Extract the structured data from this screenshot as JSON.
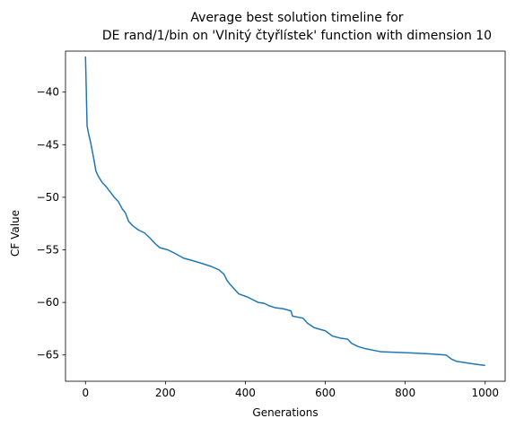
{
  "chart_data": {
    "type": "line",
    "title_lines": [
      "Average best solution timeline for",
      "DE rand/1/bin on 'Vlnitý čtyřlístek' function with dimension 10"
    ],
    "xlabel": "Generations",
    "ylabel": "CF Value",
    "xlim": [
      -50,
      1050
    ],
    "ylim": [
      -67.5,
      -36.1
    ],
    "xticks": [
      0,
      200,
      400,
      600,
      800,
      1000
    ],
    "xtick_labels": [
      "0",
      "200",
      "400",
      "600",
      "800",
      "1000"
    ],
    "yticks": [
      -40,
      -45,
      -50,
      -55,
      -60,
      -65
    ],
    "ytick_labels": [
      "−40",
      "−45",
      "−50",
      "−55",
      "−60",
      "−65"
    ],
    "grid": false,
    "series": [
      {
        "color": "#1f77b4",
        "points": [
          [
            0,
            -36.6
          ],
          [
            2,
            -39.8
          ],
          [
            4,
            -43.2
          ],
          [
            8,
            -44.0
          ],
          [
            13,
            -44.8
          ],
          [
            17,
            -45.6
          ],
          [
            22,
            -46.6
          ],
          [
            26,
            -47.5
          ],
          [
            32,
            -48.0
          ],
          [
            42,
            -48.6
          ],
          [
            52,
            -49.0
          ],
          [
            62,
            -49.5
          ],
          [
            72,
            -50.0
          ],
          [
            82,
            -50.4
          ],
          [
            92,
            -51.1
          ],
          [
            100,
            -51.5
          ],
          [
            108,
            -52.3
          ],
          [
            118,
            -52.7
          ],
          [
            132,
            -53.1
          ],
          [
            148,
            -53.4
          ],
          [
            162,
            -53.9
          ],
          [
            174,
            -54.4
          ],
          [
            186,
            -54.8
          ],
          [
            206,
            -55.0
          ],
          [
            222,
            -55.3
          ],
          [
            246,
            -55.8
          ],
          [
            266,
            -56.0
          ],
          [
            292,
            -56.3
          ],
          [
            316,
            -56.6
          ],
          [
            334,
            -56.9
          ],
          [
            346,
            -57.3
          ],
          [
            354,
            -57.9
          ],
          [
            362,
            -58.3
          ],
          [
            374,
            -58.8
          ],
          [
            384,
            -59.2
          ],
          [
            406,
            -59.5
          ],
          [
            432,
            -60.0
          ],
          [
            448,
            -60.1
          ],
          [
            458,
            -60.3
          ],
          [
            474,
            -60.5
          ],
          [
            494,
            -60.6
          ],
          [
            514,
            -60.8
          ],
          [
            518,
            -61.3
          ],
          [
            544,
            -61.5
          ],
          [
            556,
            -62.0
          ],
          [
            564,
            -62.2
          ],
          [
            572,
            -62.4
          ],
          [
            600,
            -62.7
          ],
          [
            618,
            -63.2
          ],
          [
            638,
            -63.4
          ],
          [
            656,
            -63.5
          ],
          [
            666,
            -63.9
          ],
          [
            682,
            -64.2
          ],
          [
            700,
            -64.4
          ],
          [
            740,
            -64.7
          ],
          [
            812,
            -64.8
          ],
          [
            862,
            -64.9
          ],
          [
            902,
            -65.0
          ],
          [
            916,
            -65.4
          ],
          [
            928,
            -65.6
          ],
          [
            962,
            -65.8
          ],
          [
            980,
            -65.9
          ],
          [
            1000,
            -66.0
          ]
        ]
      }
    ]
  }
}
